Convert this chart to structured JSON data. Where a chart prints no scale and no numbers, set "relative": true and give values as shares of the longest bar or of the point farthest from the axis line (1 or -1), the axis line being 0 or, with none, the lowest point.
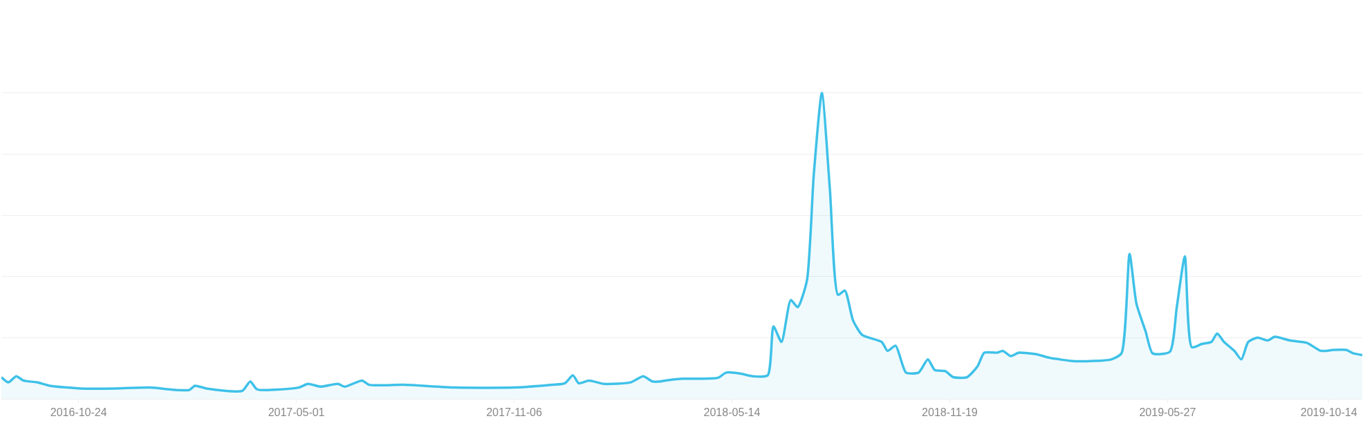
{
  "chart_data": {
    "type": "area",
    "relative": true,
    "grid": "y",
    "tick_labels": "x",
    "xlim": [
      "2016-08-18",
      "2019-11-12"
    ],
    "xticks": [
      "2016-10-24",
      "2017-05-01",
      "2017-11-06",
      "2018-05-14",
      "2018-11-19",
      "2019-05-27",
      "2019-10-14"
    ],
    "x": [
      "2016-08-18",
      "2016-08-24",
      "2016-08-31",
      "2016-09-06",
      "2016-09-18",
      "2016-09-29",
      "2016-10-26",
      "2016-11-25",
      "2016-12-25",
      "2017-01-17",
      "2017-01-28",
      "2017-02-02",
      "2017-02-12",
      "2017-03-15",
      "2017-03-22",
      "2017-03-28",
      "2017-05-03",
      "2017-05-11",
      "2017-05-22",
      "2017-06-06",
      "2017-06-12",
      "2017-06-27",
      "2017-07-03",
      "2017-08-02",
      "2017-09-16",
      "2017-11-05",
      "2017-12-09",
      "2017-12-20",
      "2017-12-27",
      "2018-01-01",
      "2018-01-10",
      "2018-01-23",
      "2018-02-15",
      "2018-02-26",
      "2018-03-06",
      "2018-03-13",
      "2018-03-17",
      "2018-04-01",
      "2018-04-17",
      "2018-05-02",
      "2018-05-09",
      "2018-05-21",
      "2018-06-01",
      "2018-06-14",
      "2018-06-19",
      "2018-06-26",
      "2018-07-04",
      "2018-07-10",
      "2018-07-18",
      "2018-07-24",
      "2018-07-31",
      "2018-08-07",
      "2018-08-14",
      "2018-08-20",
      "2018-08-27",
      "2018-09-04",
      "2018-09-21",
      "2018-09-26",
      "2018-10-03",
      "2018-10-12",
      "2018-10-23",
      "2018-10-31",
      "2018-11-06",
      "2018-11-15",
      "2018-11-22",
      "2018-12-04",
      "2018-12-13",
      "2018-12-19",
      "2018-12-30",
      "2019-01-04",
      "2019-01-11",
      "2019-01-18",
      "2019-02-02",
      "2019-02-14",
      "2019-03-08",
      "2019-04-08",
      "2019-04-17",
      "2019-04-24",
      "2019-04-30",
      "2019-05-08",
      "2019-05-14",
      "2019-05-29",
      "2019-06-04",
      "2019-06-11",
      "2019-06-17",
      "2019-06-26",
      "2019-07-04",
      "2019-07-09",
      "2019-07-15",
      "2019-07-24",
      "2019-07-30",
      "2019-08-05",
      "2019-08-13",
      "2019-08-22",
      "2019-08-28",
      "2019-09-10",
      "2019-09-25",
      "2019-10-07",
      "2019-10-18",
      "2019-10-29",
      "2019-11-04",
      "2019-11-12"
    ],
    "series": [
      {
        "color": "#3ec1e8",
        "values": [
          0.071,
          0.054,
          0.074,
          0.06,
          0.054,
          0.043,
          0.034,
          0.034,
          0.037,
          0.029,
          0.029,
          0.043,
          0.034,
          0.026,
          0.057,
          0.031,
          0.037,
          0.049,
          0.04,
          0.049,
          0.04,
          0.06,
          0.046,
          0.046,
          0.037,
          0.037,
          0.046,
          0.051,
          0.077,
          0.051,
          0.06,
          0.049,
          0.054,
          0.074,
          0.057,
          0.057,
          0.06,
          0.066,
          0.066,
          0.069,
          0.086,
          0.083,
          0.074,
          0.077,
          0.237,
          0.186,
          0.323,
          0.3,
          0.386,
          0.734,
          1,
          0.683,
          0.34,
          0.354,
          0.257,
          0.209,
          0.186,
          0.157,
          0.174,
          0.086,
          0.086,
          0.129,
          0.094,
          0.091,
          0.071,
          0.071,
          0.106,
          0.151,
          0.151,
          0.157,
          0.14,
          0.151,
          0.146,
          0.134,
          0.123,
          0.129,
          0.149,
          0.474,
          0.311,
          0.22,
          0.149,
          0.154,
          0.3,
          0.466,
          0.169,
          0.18,
          0.186,
          0.214,
          0.186,
          0.157,
          0.129,
          0.186,
          0.2,
          0.191,
          0.203,
          0.191,
          0.183,
          0.157,
          0.16,
          0.16,
          0.149,
          0.143
        ]
      }
    ]
  }
}
